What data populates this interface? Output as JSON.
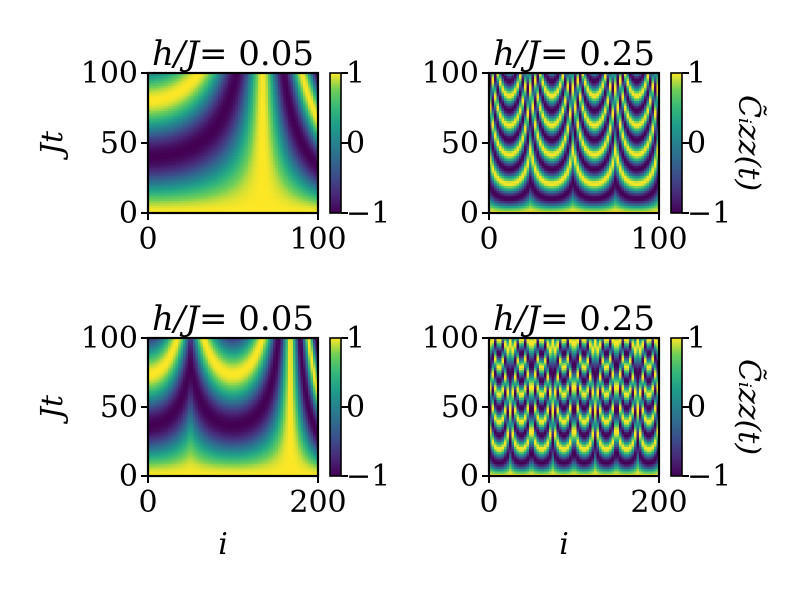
{
  "chart_data": [
    {
      "type": "heatmap",
      "title": "h/J = 0.05",
      "title_var": "h/J",
      "title_value": "= 0.05",
      "x_range": [
        0,
        100
      ],
      "y_range": [
        0,
        100
      ],
      "x_ticks": [
        "0",
        "100"
      ],
      "y_ticks": [
        "0",
        "50",
        "100"
      ],
      "xlabel": "",
      "ylabel": "Jt",
      "colorbar_ticks": [
        "1",
        "0",
        "−1"
      ],
      "colorbar_label": "",
      "colormap": "viridis",
      "color_range": [
        -1,
        1
      ],
      "pattern": {
        "arcs": 1,
        "peak_offsets": [
          0
        ],
        "freq": 0.078
      }
    },
    {
      "type": "heatmap",
      "title": "h/J = 0.25",
      "title_var": "h/J",
      "title_value": "= 0.25",
      "x_range": [
        0,
        100
      ],
      "y_range": [
        0,
        100
      ],
      "x_ticks": [
        "0",
        "100"
      ],
      "y_ticks": [
        "0",
        "50",
        "100"
      ],
      "xlabel": "",
      "ylabel": "",
      "colorbar_ticks": [
        "1",
        "0",
        "−1"
      ],
      "colorbar_label": "C̃ᵢzz(t)",
      "colormap": "viridis",
      "color_range": [
        -1,
        1
      ],
      "pattern": {
        "arcs": 4,
        "peak_offsets": [
          0.12,
          0.37,
          0.62,
          0.87
        ],
        "freq": 0.3
      }
    },
    {
      "type": "heatmap",
      "title": "h/J = 0.05",
      "title_var": "h/J",
      "title_value": "= 0.05",
      "x_range": [
        0,
        200
      ],
      "y_range": [
        0,
        100
      ],
      "x_ticks": [
        "0",
        "200"
      ],
      "y_ticks": [
        "0",
        "50",
        "100"
      ],
      "xlabel": "i",
      "ylabel": "Jt",
      "colorbar_ticks": [
        "1",
        "0",
        "−1"
      ],
      "colorbar_label": "",
      "colormap": "viridis",
      "color_range": [
        -1,
        1
      ],
      "pattern": {
        "arcs": 2,
        "peak_offsets": [
          0.0,
          0.5
        ],
        "freq": 0.085
      }
    },
    {
      "type": "heatmap",
      "title": "h/J = 0.25",
      "title_var": "h/J",
      "title_value": "= 0.25",
      "x_range": [
        0,
        200
      ],
      "y_range": [
        0,
        100
      ],
      "x_ticks": [
        "0",
        "200"
      ],
      "y_ticks": [
        "0",
        "50",
        "100"
      ],
      "xlabel": "i",
      "ylabel": "",
      "colorbar_ticks": [
        "1",
        "0",
        "−1"
      ],
      "colorbar_label": "C̃ᵢzz(t)",
      "colormap": "viridis",
      "color_range": [
        -1,
        1
      ],
      "pattern": {
        "arcs": 8,
        "peak_offsets": [
          0.06,
          0.19,
          0.31,
          0.44,
          0.56,
          0.69,
          0.81,
          0.94
        ],
        "freq": 0.32
      }
    }
  ]
}
